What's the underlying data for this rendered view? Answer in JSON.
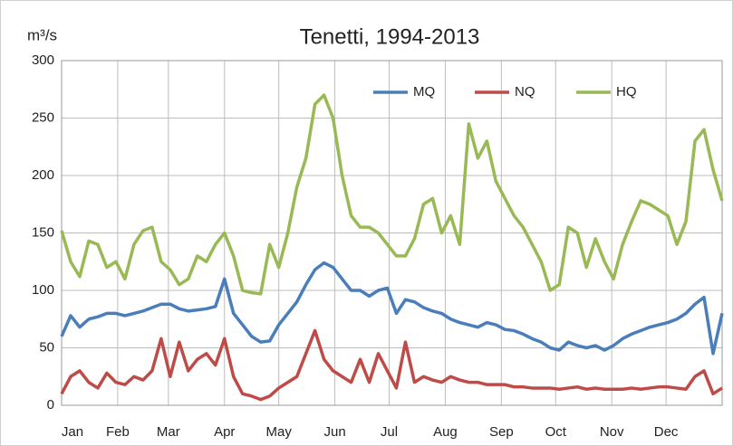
{
  "chart_data": {
    "type": "line",
    "title": "Tenetti, 1994-2013",
    "y_label": "m³/s",
    "x": [
      1,
      6,
      11,
      16,
      21,
      26,
      31,
      36,
      41,
      46,
      51,
      56,
      61,
      66,
      71,
      76,
      81,
      86,
      91,
      96,
      101,
      106,
      111,
      116,
      121,
      126,
      131,
      136,
      141,
      146,
      151,
      156,
      161,
      166,
      171,
      176,
      181,
      186,
      191,
      196,
      201,
      206,
      211,
      216,
      221,
      226,
      231,
      236,
      241,
      246,
      251,
      256,
      261,
      266,
      271,
      276,
      281,
      286,
      291,
      296,
      301,
      306,
      311,
      316,
      321,
      326,
      331,
      336,
      341,
      346,
      351,
      356,
      361,
      366
    ],
    "xlim": [
      1,
      366
    ],
    "xticks": [
      {
        "value": 1,
        "label": "Jan"
      },
      {
        "value": 32,
        "label": "Feb"
      },
      {
        "value": 60,
        "label": "Mar"
      },
      {
        "value": 91,
        "label": "Apr"
      },
      {
        "value": 121,
        "label": "May"
      },
      {
        "value": 152,
        "label": "Jun"
      },
      {
        "value": 182,
        "label": "Jul"
      },
      {
        "value": 213,
        "label": "Aug"
      },
      {
        "value": 244,
        "label": "Sep"
      },
      {
        "value": 274,
        "label": "Oct"
      },
      {
        "value": 305,
        "label": "Nov"
      },
      {
        "value": 335,
        "label": "Dec"
      }
    ],
    "ylim": [
      0,
      300
    ],
    "yticks": [
      0,
      50,
      100,
      150,
      200,
      250,
      300
    ],
    "grid": true,
    "legend": "top-right",
    "series": [
      {
        "name": "MQ",
        "color": "#4a7ebb",
        "values": [
          60,
          78,
          68,
          75,
          77,
          80,
          80,
          78,
          80,
          82,
          85,
          88,
          88,
          84,
          82,
          83,
          84,
          86,
          110,
          80,
          70,
          60,
          55,
          56,
          70,
          80,
          90,
          105,
          118,
          124,
          120,
          110,
          100,
          100,
          95,
          100,
          102,
          80,
          92,
          90,
          85,
          82,
          80,
          75,
          72,
          70,
          68,
          72,
          70,
          66,
          65,
          62,
          58,
          55,
          50,
          48,
          55,
          52,
          50,
          52,
          48,
          52,
          58,
          62,
          65,
          68,
          70,
          72,
          75,
          80,
          88,
          94,
          45,
          80
        ]
      },
      {
        "name": "NQ",
        "color": "#be4b48",
        "values": [
          10,
          25,
          30,
          20,
          15,
          28,
          20,
          18,
          25,
          22,
          30,
          58,
          25,
          55,
          30,
          40,
          45,
          35,
          58,
          25,
          10,
          8,
          5,
          8,
          15,
          20,
          25,
          45,
          65,
          40,
          30,
          25,
          20,
          40,
          20,
          45,
          30,
          15,
          55,
          20,
          25,
          22,
          20,
          25,
          22,
          20,
          20,
          18,
          18,
          18,
          16,
          16,
          15,
          15,
          15,
          14,
          15,
          16,
          14,
          15,
          14,
          14,
          14,
          15,
          14,
          15,
          16,
          16,
          15,
          14,
          25,
          30,
          10,
          15
        ]
      },
      {
        "name": "HQ",
        "color": "#98b954",
        "values": [
          152,
          125,
          112,
          143,
          140,
          120,
          125,
          110,
          140,
          152,
          155,
          125,
          118,
          105,
          110,
          130,
          125,
          140,
          150,
          130,
          100,
          98,
          97,
          140,
          120,
          150,
          190,
          215,
          262,
          270,
          250,
          200,
          165,
          155,
          155,
          150,
          140,
          130,
          130,
          145,
          175,
          180,
          150,
          165,
          140,
          245,
          215,
          230,
          195,
          180,
          165,
          155,
          140,
          125,
          100,
          105,
          155,
          150,
          120,
          145,
          125,
          110,
          140,
          160,
          178,
          175,
          170,
          165,
          140,
          160,
          230,
          240,
          205,
          178
        ]
      }
    ]
  }
}
